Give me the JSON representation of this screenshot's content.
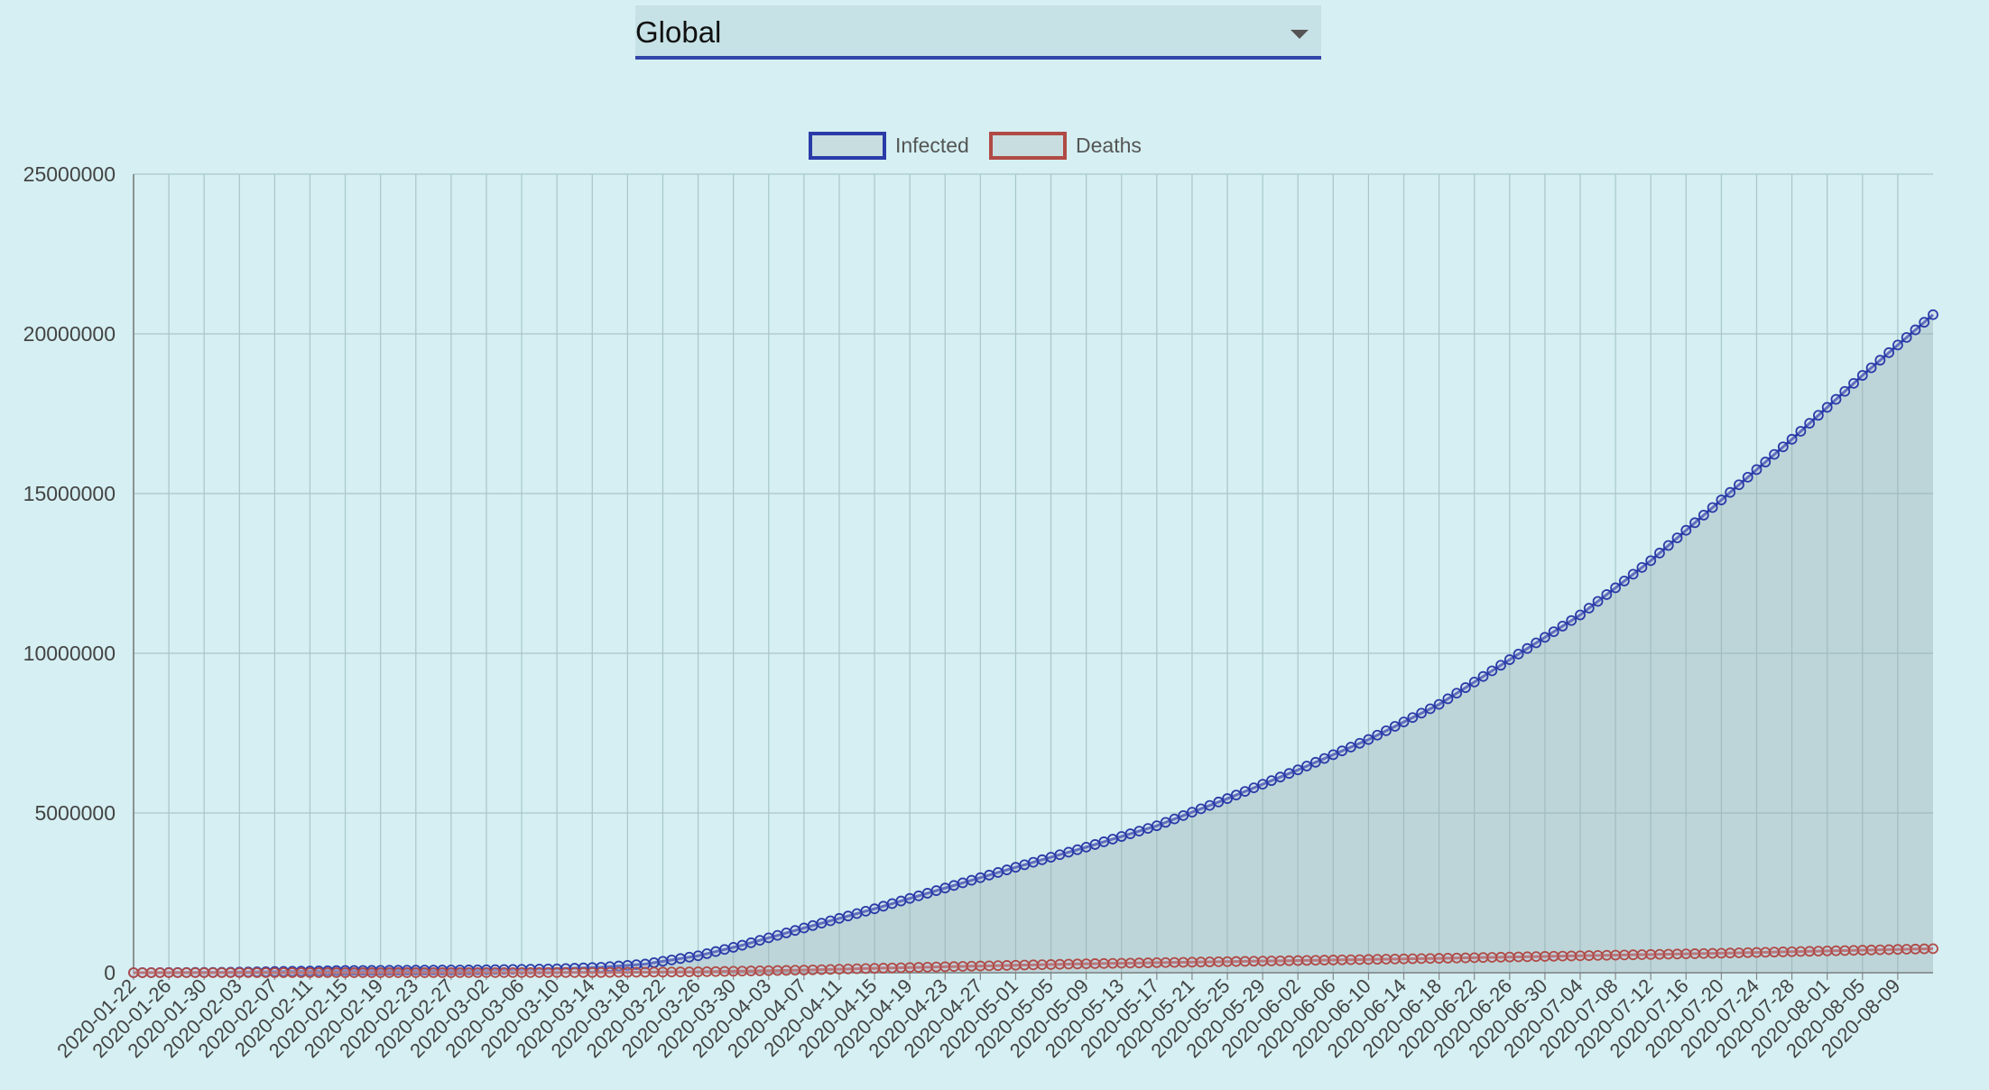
{
  "selector": {
    "value": "Global"
  },
  "chart_data": {
    "type": "line",
    "xlabel": "",
    "ylabel": "",
    "ylim": [
      0,
      25000000
    ],
    "yticks": [
      0,
      5000000,
      10000000,
      15000000,
      20000000,
      25000000
    ],
    "ytick_labels": [
      "0",
      "5000000",
      "10000000",
      "15000000",
      "20000000",
      "25000000"
    ],
    "x_start": "2020-01-22",
    "x_end": "2020-08-13",
    "xtick_labels": [
      "2020-01-22",
      "2020-01-26",
      "2020-01-30",
      "2020-02-03",
      "2020-02-07",
      "2020-02-11",
      "2020-02-15",
      "2020-02-19",
      "2020-02-23",
      "2020-02-27",
      "2020-03-02",
      "2020-03-06",
      "2020-03-10",
      "2020-03-14",
      "2020-03-18",
      "2020-03-22",
      "2020-03-26",
      "2020-03-30",
      "2020-04-03",
      "2020-04-07",
      "2020-04-11",
      "2020-04-15",
      "2020-04-19",
      "2020-04-23",
      "2020-04-27",
      "2020-05-01",
      "2020-05-05",
      "2020-05-09",
      "2020-05-13",
      "2020-05-17",
      "2020-05-21",
      "2020-05-25",
      "2020-05-29",
      "2020-06-02",
      "2020-06-06",
      "2020-06-10",
      "2020-06-14",
      "2020-06-18",
      "2020-06-22",
      "2020-06-26",
      "2020-06-30",
      "2020-07-04",
      "2020-07-08",
      "2020-07-12",
      "2020-07-16",
      "2020-07-20",
      "2020-07-24",
      "2020-07-28",
      "2020-08-01",
      "2020-08-05",
      "2020-08-09"
    ],
    "grid": true,
    "legend_position": "top-center",
    "series": [
      {
        "name": "Infected",
        "color": "#2a3ba8",
        "fill": true,
        "keypoints": [
          [
            "2020-01-22",
            555
          ],
          [
            "2020-02-01",
            12000
          ],
          [
            "2020-02-15",
            69000
          ],
          [
            "2020-03-01",
            88000
          ],
          [
            "2020-03-10",
            120000
          ],
          [
            "2020-03-15",
            170000
          ],
          [
            "2020-03-20",
            270000
          ],
          [
            "2020-03-26",
            530000
          ],
          [
            "2020-03-31",
            860000
          ],
          [
            "2020-04-07",
            1400000
          ],
          [
            "2020-04-15",
            2000000
          ],
          [
            "2020-04-23",
            2650000
          ],
          [
            "2020-05-01",
            3300000
          ],
          [
            "2020-05-09",
            3930000
          ],
          [
            "2020-05-17",
            4600000
          ],
          [
            "2020-05-25",
            5450000
          ],
          [
            "2020-06-02",
            6350000
          ],
          [
            "2020-06-10",
            7300000
          ],
          [
            "2020-06-18",
            8400000
          ],
          [
            "2020-06-26",
            9800000
          ],
          [
            "2020-07-04",
            11200000
          ],
          [
            "2020-07-12",
            12900000
          ],
          [
            "2020-07-20",
            14800000
          ],
          [
            "2020-07-28",
            16700000
          ],
          [
            "2020-08-05",
            18700000
          ],
          [
            "2020-08-13",
            20600000
          ]
        ]
      },
      {
        "name": "Deaths",
        "color": "#b04a45",
        "fill": false,
        "keypoints": [
          [
            "2020-01-22",
            17
          ],
          [
            "2020-02-15",
            1500
          ],
          [
            "2020-03-01",
            3000
          ],
          [
            "2020-03-15",
            6500
          ],
          [
            "2020-03-26",
            27000
          ],
          [
            "2020-04-07",
            82000
          ],
          [
            "2020-04-15",
            137000
          ],
          [
            "2020-04-27",
            210000
          ],
          [
            "2020-05-09",
            280000
          ],
          [
            "2020-05-21",
            330000
          ],
          [
            "2020-06-02",
            380000
          ],
          [
            "2020-06-18",
            450000
          ],
          [
            "2020-07-04",
            530000
          ],
          [
            "2020-07-20",
            610000
          ],
          [
            "2020-08-05",
            705000
          ],
          [
            "2020-08-13",
            752000
          ]
        ]
      }
    ]
  }
}
